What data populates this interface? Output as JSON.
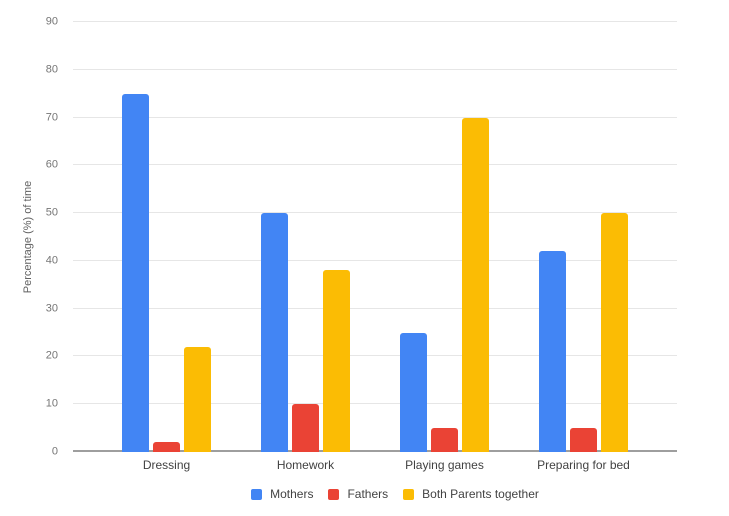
{
  "chart_data": {
    "type": "bar",
    "title": "",
    "xlabel": "",
    "ylabel": "Percentage (%) of time",
    "ylim": [
      0,
      90
    ],
    "yticks": [
      0,
      10,
      20,
      30,
      40,
      50,
      60,
      70,
      80,
      90
    ],
    "grid": true,
    "legend_position": "bottom",
    "categories": [
      "Dressing",
      "Homework",
      "Playing games",
      "Preparing for bed"
    ],
    "series": [
      {
        "name": "Mothers",
        "color": "#4285F4",
        "values": [
          75,
          50,
          25,
          42
        ]
      },
      {
        "name": "Fathers",
        "color": "#EA4335",
        "values": [
          2,
          10,
          5,
          5
        ]
      },
      {
        "name": "Both Parents together",
        "color": "#FBBC04",
        "values": [
          22,
          38,
          70,
          50
        ]
      }
    ],
    "axis_colors": {
      "gridline": "#e6e6e6",
      "baseline": "#9e9e9e",
      "tick_text": "#757575",
      "label_text": "#424242"
    }
  }
}
